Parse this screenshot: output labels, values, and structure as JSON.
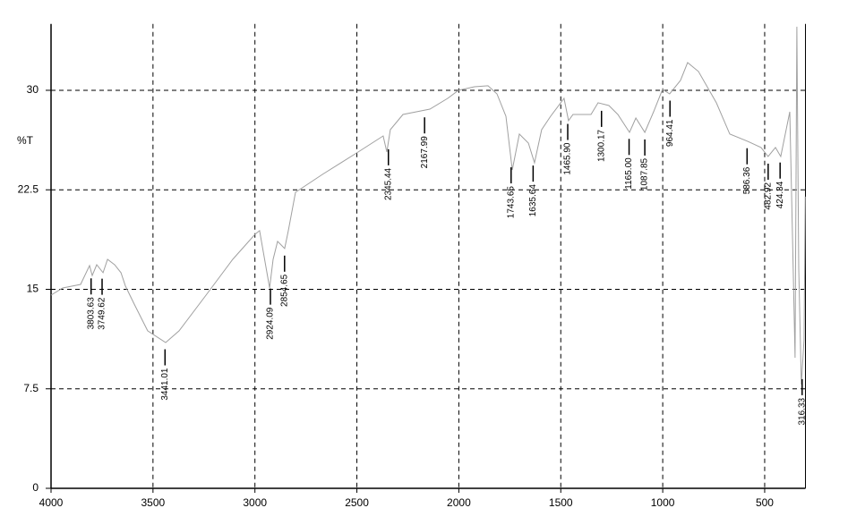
{
  "chart_data": {
    "type": "line",
    "y_label": "%T",
    "color": "#a0a0a0",
    "grid": true,
    "xlim": [
      4000,
      300
    ],
    "ylim": [
      0,
      35
    ],
    "xticks": [
      4000,
      3500,
      3000,
      2500,
      2000,
      1500,
      1000,
      500
    ],
    "yticks": [
      0,
      7.5,
      15,
      22.5,
      30
    ],
    "x": [
      4000,
      3943,
      3855,
      3811,
      3798,
      3776,
      3745,
      3723,
      3688,
      3657,
      3635,
      3592,
      3526,
      3438,
      3372,
      3240,
      3109,
      2999,
      2977,
      2928,
      2911,
      2889,
      2854,
      2836,
      2801,
      2669,
      2494,
      2371,
      2353,
      2336,
      2274,
      2142,
      2055,
      2002,
      1923,
      1857,
      1813,
      1769,
      1738,
      1703,
      1659,
      1629,
      1594,
      1550,
      1484,
      1462,
      1440,
      1352,
      1317,
      1264,
      1220,
      1163,
      1132,
      1088,
      1045,
      1001,
      966,
      913,
      878,
      825,
      737,
      671,
      584,
      518,
      483,
      447,
      421,
      377,
      360,
      351,
      342,
      333,
      320,
      307,
      301
    ],
    "values": [
      14.56,
      15.1,
      15.37,
      16.79,
      16.04,
      16.85,
      16.25,
      17.26,
      16.85,
      16.25,
      15.24,
      13.89,
      11.87,
      10.99,
      11.87,
      14.56,
      17.26,
      19.15,
      19.42,
      15.1,
      17.26,
      18.61,
      18.07,
      19.42,
      22.31,
      23.66,
      25.35,
      26.56,
      25.35,
      27.03,
      28.18,
      28.58,
      29.39,
      30.0,
      30.27,
      30.34,
      29.73,
      28.04,
      24.0,
      26.7,
      26.02,
      24.54,
      27.03,
      28.04,
      29.39,
      27.71,
      28.18,
      28.18,
      29.06,
      28.85,
      28.18,
      26.83,
      27.91,
      26.83,
      28.38,
      30.07,
      29.73,
      30.74,
      32.09,
      31.42,
      29.06,
      26.7,
      26.16,
      25.69,
      25.01,
      25.69,
      25.01,
      28.38,
      16.58,
      9.84,
      34.79,
      16.58,
      7.82,
      11.19,
      21.98
    ],
    "annotations": [
      {
        "x": 3803.63,
        "label": "3803.63"
      },
      {
        "x": 3749.62,
        "label": "3749.62"
      },
      {
        "x": 3441.01,
        "label": "3441.01"
      },
      {
        "x": 2924.09,
        "label": "2924.09"
      },
      {
        "x": 2854.65,
        "label": "2854.65"
      },
      {
        "x": 2345.44,
        "label": "2345.44"
      },
      {
        "x": 2167.99,
        "label": "2167.99"
      },
      {
        "x": 1743.65,
        "label": "1743.65"
      },
      {
        "x": 1635.64,
        "label": "1635.64"
      },
      {
        "x": 1465.9,
        "label": "1465.90"
      },
      {
        "x": 1300.17,
        "label": "1300.17"
      },
      {
        "x": 1165,
        "label": "1165.00"
      },
      {
        "x": 1087.85,
        "label": "1087.85"
      },
      {
        "x": 964.41,
        "label": "964.41"
      },
      {
        "x": 586.36,
        "label": "586.36"
      },
      {
        "x": 482.92,
        "label": "482.92"
      },
      {
        "x": 424.34,
        "label": "424.34"
      },
      {
        "x": 316.33,
        "label": "316.33"
      }
    ]
  }
}
